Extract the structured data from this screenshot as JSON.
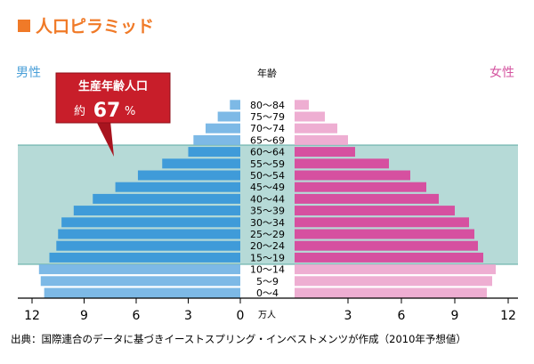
{
  "header": {
    "title": "人口ピラミッド",
    "accent_color": "#f07a28"
  },
  "labels": {
    "male": "男性",
    "female": "女性",
    "age_header": "年齢",
    "unit": "万人"
  },
  "callout": {
    "line1": "生産年齢人口",
    "prefix": "約",
    "value": "67",
    "suffix": "%"
  },
  "footer": {
    "source": "出典：国際連合のデータに基づきイーストスプリング・インベストメンツが作成（2010年予想値）"
  },
  "colors": {
    "male": "#55a8dc",
    "female": "#de6aa6",
    "band": "#a9d4d0",
    "callout": "#c81e2a"
  },
  "chart_data": {
    "type": "bar",
    "orientation": "horizontal-pyramid",
    "unit": "万人",
    "categories": [
      "0～4",
      "5～9",
      "10～14",
      "15～19",
      "20～24",
      "25～29",
      "30～34",
      "35～39",
      "40～44",
      "45～49",
      "50～54",
      "55～59",
      "60～64",
      "65～69",
      "70～74",
      "75～79",
      "80～84"
    ],
    "series": [
      {
        "name": "男性",
        "values": [
          11.3,
          11.5,
          11.6,
          11.0,
          10.6,
          10.5,
          10.3,
          9.6,
          8.5,
          7.2,
          5.9,
          4.5,
          3.0,
          2.7,
          2.0,
          1.3,
          0.6
        ]
      },
      {
        "name": "女性",
        "values": [
          10.8,
          11.1,
          11.3,
          10.6,
          10.3,
          10.1,
          9.8,
          9.0,
          8.1,
          7.4,
          6.5,
          5.3,
          3.4,
          3.0,
          2.4,
          1.7,
          0.8
        ]
      }
    ],
    "xticks": [
      12,
      9,
      6,
      3,
      0,
      3,
      6,
      9,
      12
    ],
    "xlim": [
      0,
      12
    ],
    "highlight_band": [
      "15～19",
      "60～64"
    ]
  }
}
